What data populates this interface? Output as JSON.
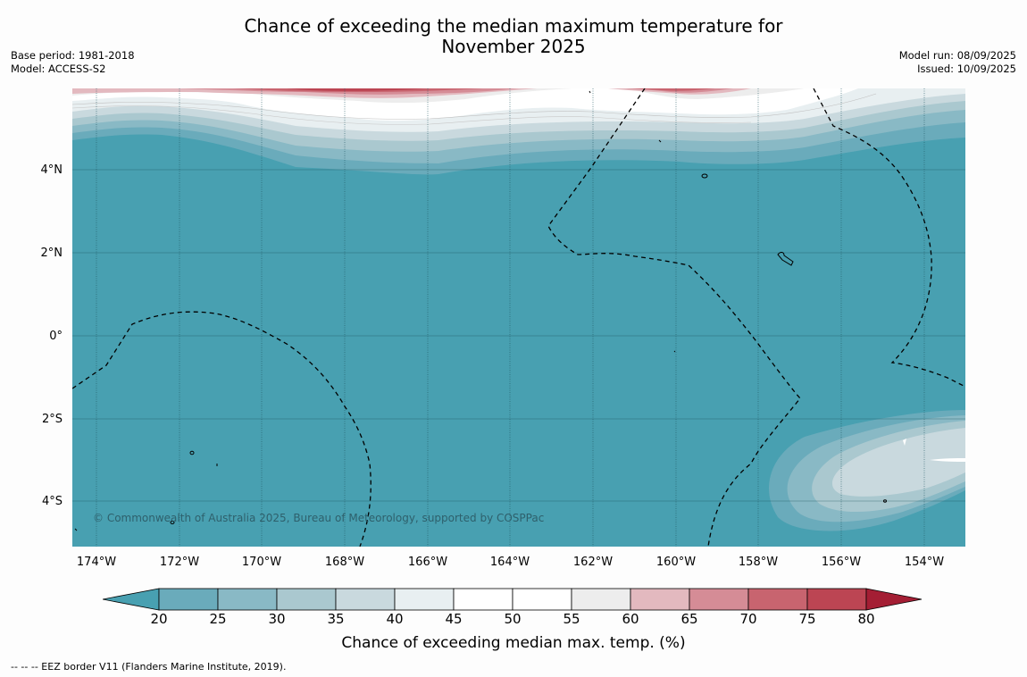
{
  "title": {
    "line1": "Chance of exceeding the median maximum temperature for",
    "line2": "November 2025"
  },
  "meta_left": {
    "base_period": "Base period: 1981-2018",
    "model": "Model: ACCESS-S2"
  },
  "meta_right": {
    "model_run": "Model run: 08/09/2025",
    "issued": "Issued: 10/09/2025"
  },
  "map": {
    "copyright": "© Commonwealth of Australia 2025, Bureau of Meteorology, supported by COSPPac",
    "lat_labels": [
      "4°N",
      "2°N",
      "0°",
      "2°S",
      "4°S"
    ],
    "lon_labels": [
      "174°W",
      "172°W",
      "170°W",
      "168°W",
      "166°W",
      "164°W",
      "162°W",
      "160°W",
      "158°W",
      "156°W",
      "154°W"
    ],
    "background_color": "#48a0b1"
  },
  "colorbar": {
    "label": "Chance of exceeding median max. temp. (%)",
    "ticks": [
      "20",
      "25",
      "30",
      "35",
      "40",
      "45",
      "50",
      "55",
      "60",
      "65",
      "70",
      "75",
      "80"
    ],
    "colors": [
      "#48a0b1",
      "#6aabbb",
      "#89b9c5",
      "#aac8cf",
      "#c9d9de",
      "#e8eff1",
      "#ffffff",
      "#ffffff",
      "#ededed",
      "#e3b9bf",
      "#d58c96",
      "#c8646f",
      "#bc4553",
      "#a41e34"
    ]
  },
  "footnote": "--  --  -- EEZ border V11 (Flanders Marine Institute, 2019)."
}
